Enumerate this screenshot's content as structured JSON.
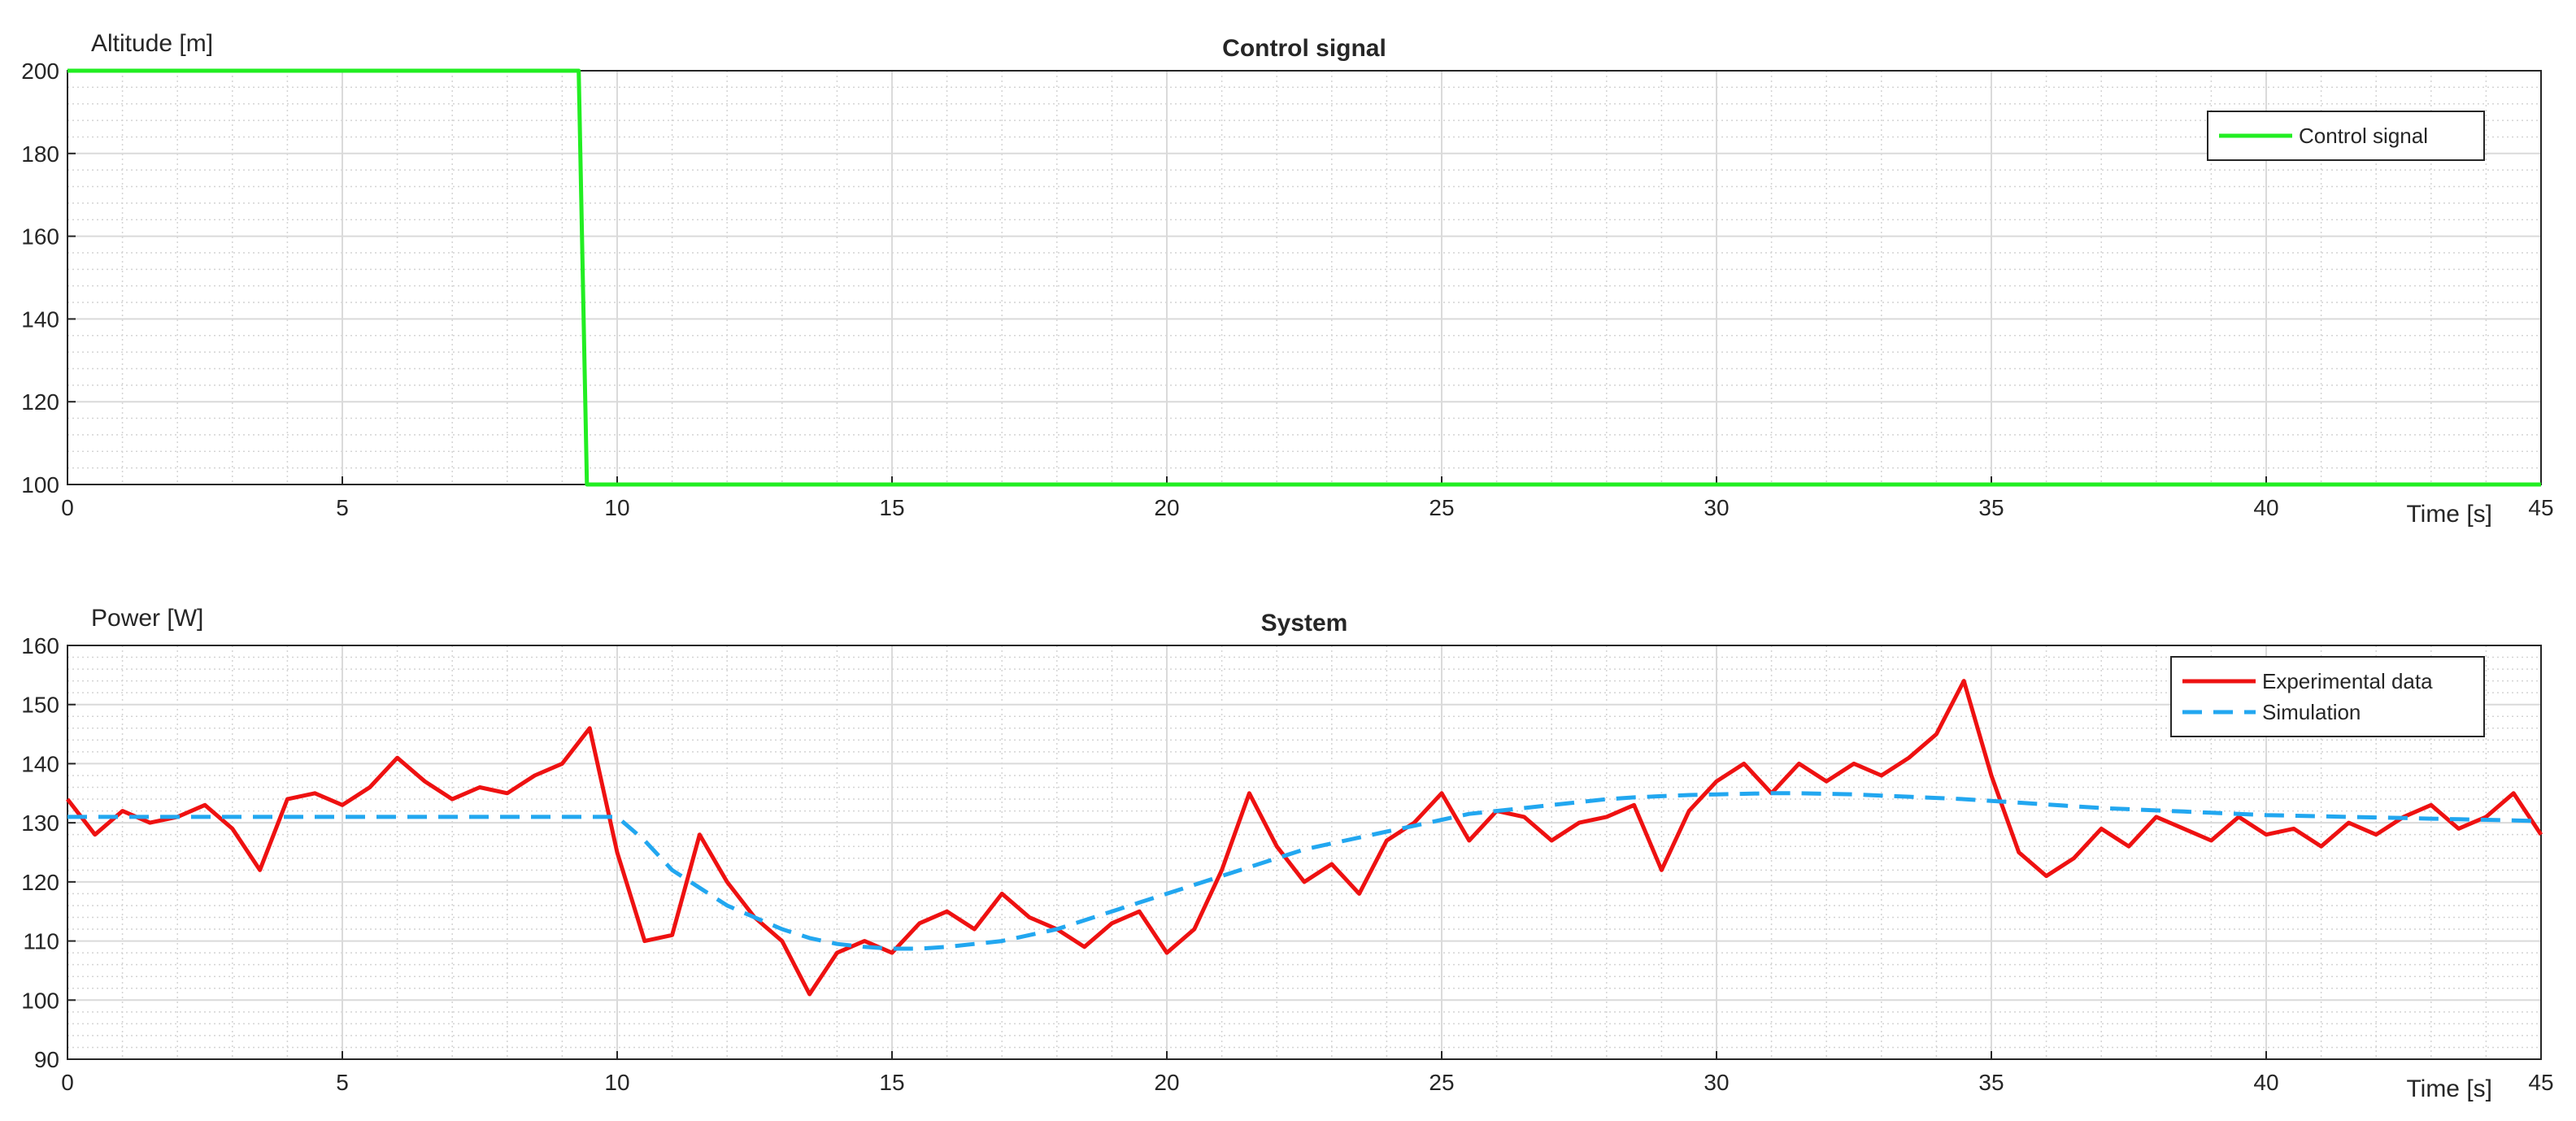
{
  "chart_data": [
    {
      "type": "line",
      "title": "Control signal",
      "y_label": "Altitude [m]",
      "x_label": "Time [s]",
      "x": [
        0,
        9.3,
        9.45,
        45
      ],
      "series": [
        {
          "name": "Control signal",
          "color": "#22ee22",
          "dash": false,
          "values": [
            200,
            200,
            100,
            100
          ]
        }
      ],
      "xlim": [
        0,
        45
      ],
      "ylim": [
        100,
        200
      ],
      "xticks": [
        0,
        5,
        10,
        15,
        20,
        25,
        30,
        35,
        40,
        45
      ],
      "yticks": [
        100,
        120,
        140,
        160,
        180,
        200
      ],
      "grid": true,
      "minor_grid": true,
      "legend": "upper right"
    },
    {
      "type": "line",
      "title": "System",
      "y_label": "Power [W]",
      "x_label": "Time [s]",
      "x": [
        0,
        0.5,
        1,
        1.5,
        2,
        2.5,
        3,
        3.5,
        4,
        4.5,
        5,
        5.5,
        6,
        6.5,
        7,
        7.5,
        8,
        8.5,
        9,
        9.5,
        10,
        10.5,
        11,
        11.5,
        12,
        12.5,
        13,
        13.5,
        14,
        14.5,
        15,
        15.5,
        16,
        16.5,
        17,
        17.5,
        18,
        18.5,
        19,
        19.5,
        20,
        20.5,
        21,
        21.5,
        22,
        22.5,
        23,
        23.5,
        24,
        24.5,
        25,
        25.5,
        26,
        26.5,
        27,
        27.5,
        28,
        28.5,
        29,
        29.5,
        30,
        30.5,
        31,
        31.5,
        32,
        32.5,
        33,
        33.5,
        34,
        34.5,
        35,
        35.5,
        36,
        36.5,
        37,
        37.5,
        38,
        38.5,
        39,
        39.5,
        40,
        40.5,
        41,
        41.5,
        42,
        42.5,
        43,
        43.5,
        44,
        44.5,
        45
      ],
      "series": [
        {
          "name": "Experimental data",
          "color": "#ee1111",
          "dash": false,
          "values": [
            134,
            128,
            132,
            130,
            131,
            133,
            129,
            122,
            134,
            135,
            133,
            136,
            141,
            137,
            134,
            136,
            135,
            138,
            140,
            146,
            125,
            110,
            111,
            128,
            120,
            114,
            110,
            101,
            108,
            110,
            108,
            113,
            115,
            112,
            118,
            114,
            112,
            109,
            113,
            115,
            108,
            112,
            122,
            135,
            126,
            120,
            123,
            118,
            127,
            130,
            135,
            127,
            132,
            131,
            127,
            130,
            131,
            133,
            122,
            132,
            137,
            140,
            135,
            140,
            137,
            140,
            138,
            141,
            145,
            154,
            138,
            125,
            121,
            124,
            129,
            126,
            131,
            129,
            127,
            131,
            128,
            129,
            126,
            130,
            128,
            131,
            133,
            129,
            131,
            135,
            128
          ]
        },
        {
          "name": "Simulation",
          "color": "#22a7f0",
          "dash": true,
          "values": [
            131,
            131,
            131,
            131,
            131,
            131,
            131,
            131,
            131,
            131,
            131,
            131,
            131,
            131,
            131,
            131,
            131,
            131,
            131,
            131,
            131,
            127,
            122,
            119,
            116,
            114,
            112,
            110.5,
            109.5,
            109,
            108.7,
            108.7,
            109,
            109.5,
            110,
            111,
            112,
            113.5,
            115,
            116.5,
            118,
            119.5,
            121,
            122.5,
            124,
            125.5,
            126.5,
            127.5,
            128.5,
            129.5,
            130.5,
            131.5,
            132,
            132.5,
            133,
            133.5,
            134,
            134.3,
            134.5,
            134.7,
            134.8,
            134.9,
            135,
            135,
            134.9,
            134.8,
            134.6,
            134.4,
            134.2,
            134,
            133.7,
            133.4,
            133.1,
            132.8,
            132.5,
            132.3,
            132.1,
            131.9,
            131.7,
            131.5,
            131.3,
            131.2,
            131.1,
            131,
            130.9,
            130.8,
            130.7,
            130.6,
            130.5,
            130.4,
            130.3
          ]
        }
      ],
      "xlim": [
        0,
        45
      ],
      "ylim": [
        90,
        160
      ],
      "xticks": [
        0,
        5,
        10,
        15,
        20,
        25,
        30,
        35,
        40,
        45
      ],
      "yticks": [
        90,
        100,
        110,
        120,
        130,
        140,
        150,
        160
      ],
      "grid": true,
      "minor_grid": true,
      "legend": "upper right"
    }
  ]
}
